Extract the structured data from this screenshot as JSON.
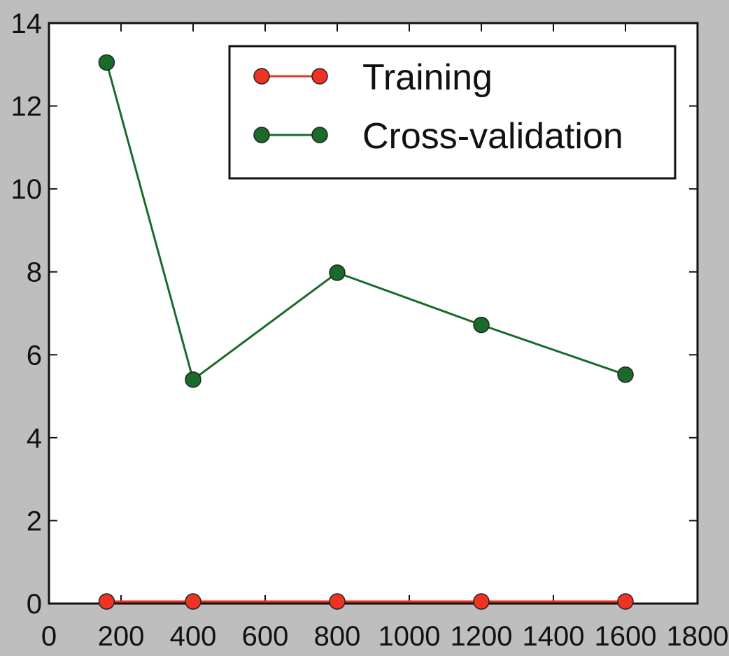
{
  "chart_data": {
    "type": "line",
    "title": "",
    "xlabel": "",
    "ylabel": "",
    "xlim": [
      0,
      1800
    ],
    "ylim": [
      0,
      14
    ],
    "x_ticks": [
      0,
      200,
      400,
      600,
      800,
      1000,
      1200,
      1400,
      1600,
      1800
    ],
    "y_ticks": [
      0,
      2,
      4,
      6,
      8,
      10,
      12,
      14
    ],
    "grid": false,
    "legend_position": "top-right",
    "x": [
      160,
      400,
      800,
      1200,
      1600
    ],
    "series": [
      {
        "name": "Training",
        "color": "#ee3322",
        "marker": "circle",
        "values": [
          0.05,
          0.05,
          0.05,
          0.05,
          0.05
        ]
      },
      {
        "name": "Cross-validation",
        "color": "#1a6b2a",
        "marker": "circle",
        "values": [
          13.05,
          5.4,
          7.98,
          6.72,
          5.52
        ]
      }
    ]
  }
}
